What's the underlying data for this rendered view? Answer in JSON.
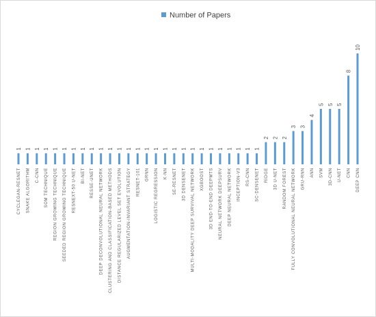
{
  "chart_data": {
    "type": "bar",
    "legend": "top",
    "ylim": [
      0,
      10
    ],
    "series": [
      {
        "name": "Number of Papers",
        "color": "#5b9bd5",
        "values": [
          1,
          1,
          1,
          1,
          1,
          1,
          1,
          1,
          1,
          1,
          1,
          1,
          1,
          1,
          1,
          1,
          1,
          1,
          1,
          1,
          1,
          1,
          1,
          1,
          1,
          1,
          1,
          2,
          2,
          2,
          3,
          3,
          4,
          5,
          5,
          5,
          8,
          10
        ]
      }
    ],
    "categories": [
      "CYCLEGAN-RESNET",
      "SNAKE ALGORITHM",
      "C-CNN",
      "SOM TECHNIQUE",
      "REGION GROWING TECHNIQUE",
      "SEEDED REGION GROWING TECHNIQUE",
      "RESNEXT-50 U-NET",
      "BI-NET",
      "RESSE-UNET",
      "DEEP DECONVOLUTIONAL NEURAL NETWORK",
      "CLUSTERING AND CLASSIFICATION-BASED METHODS",
      "DISTANCE REGULARIZED LEVEL SET EVOLUTION",
      "AUGMENTATION-INVARIANT STRATEGY",
      "RESNET-101",
      "GRNN",
      "LOGISTIC REGRESSION",
      "K-NN",
      "SE-RESNET",
      "3D DENSENET",
      "MULTI-MODALITY DEEP SURVIVAL NETWORK",
      "XGBOOST",
      "3D END-TO-END DEEPMTS",
      "NEURAL NETWORK DEEPSURV",
      "DEEP NEURAL NETWORK",
      "INCEPTION-V3",
      "RS-CNN",
      "SC-DENSENET",
      "RIDGE",
      "3D U-NET",
      "RANDOM FOREST",
      "FULLY CONVOLUTIONAL NEURAL NETWORK",
      "GRU-RNN",
      "ANN",
      "SVM",
      "3D-CNN",
      "U-NET",
      "CNN",
      "DEEP CNN"
    ]
  }
}
